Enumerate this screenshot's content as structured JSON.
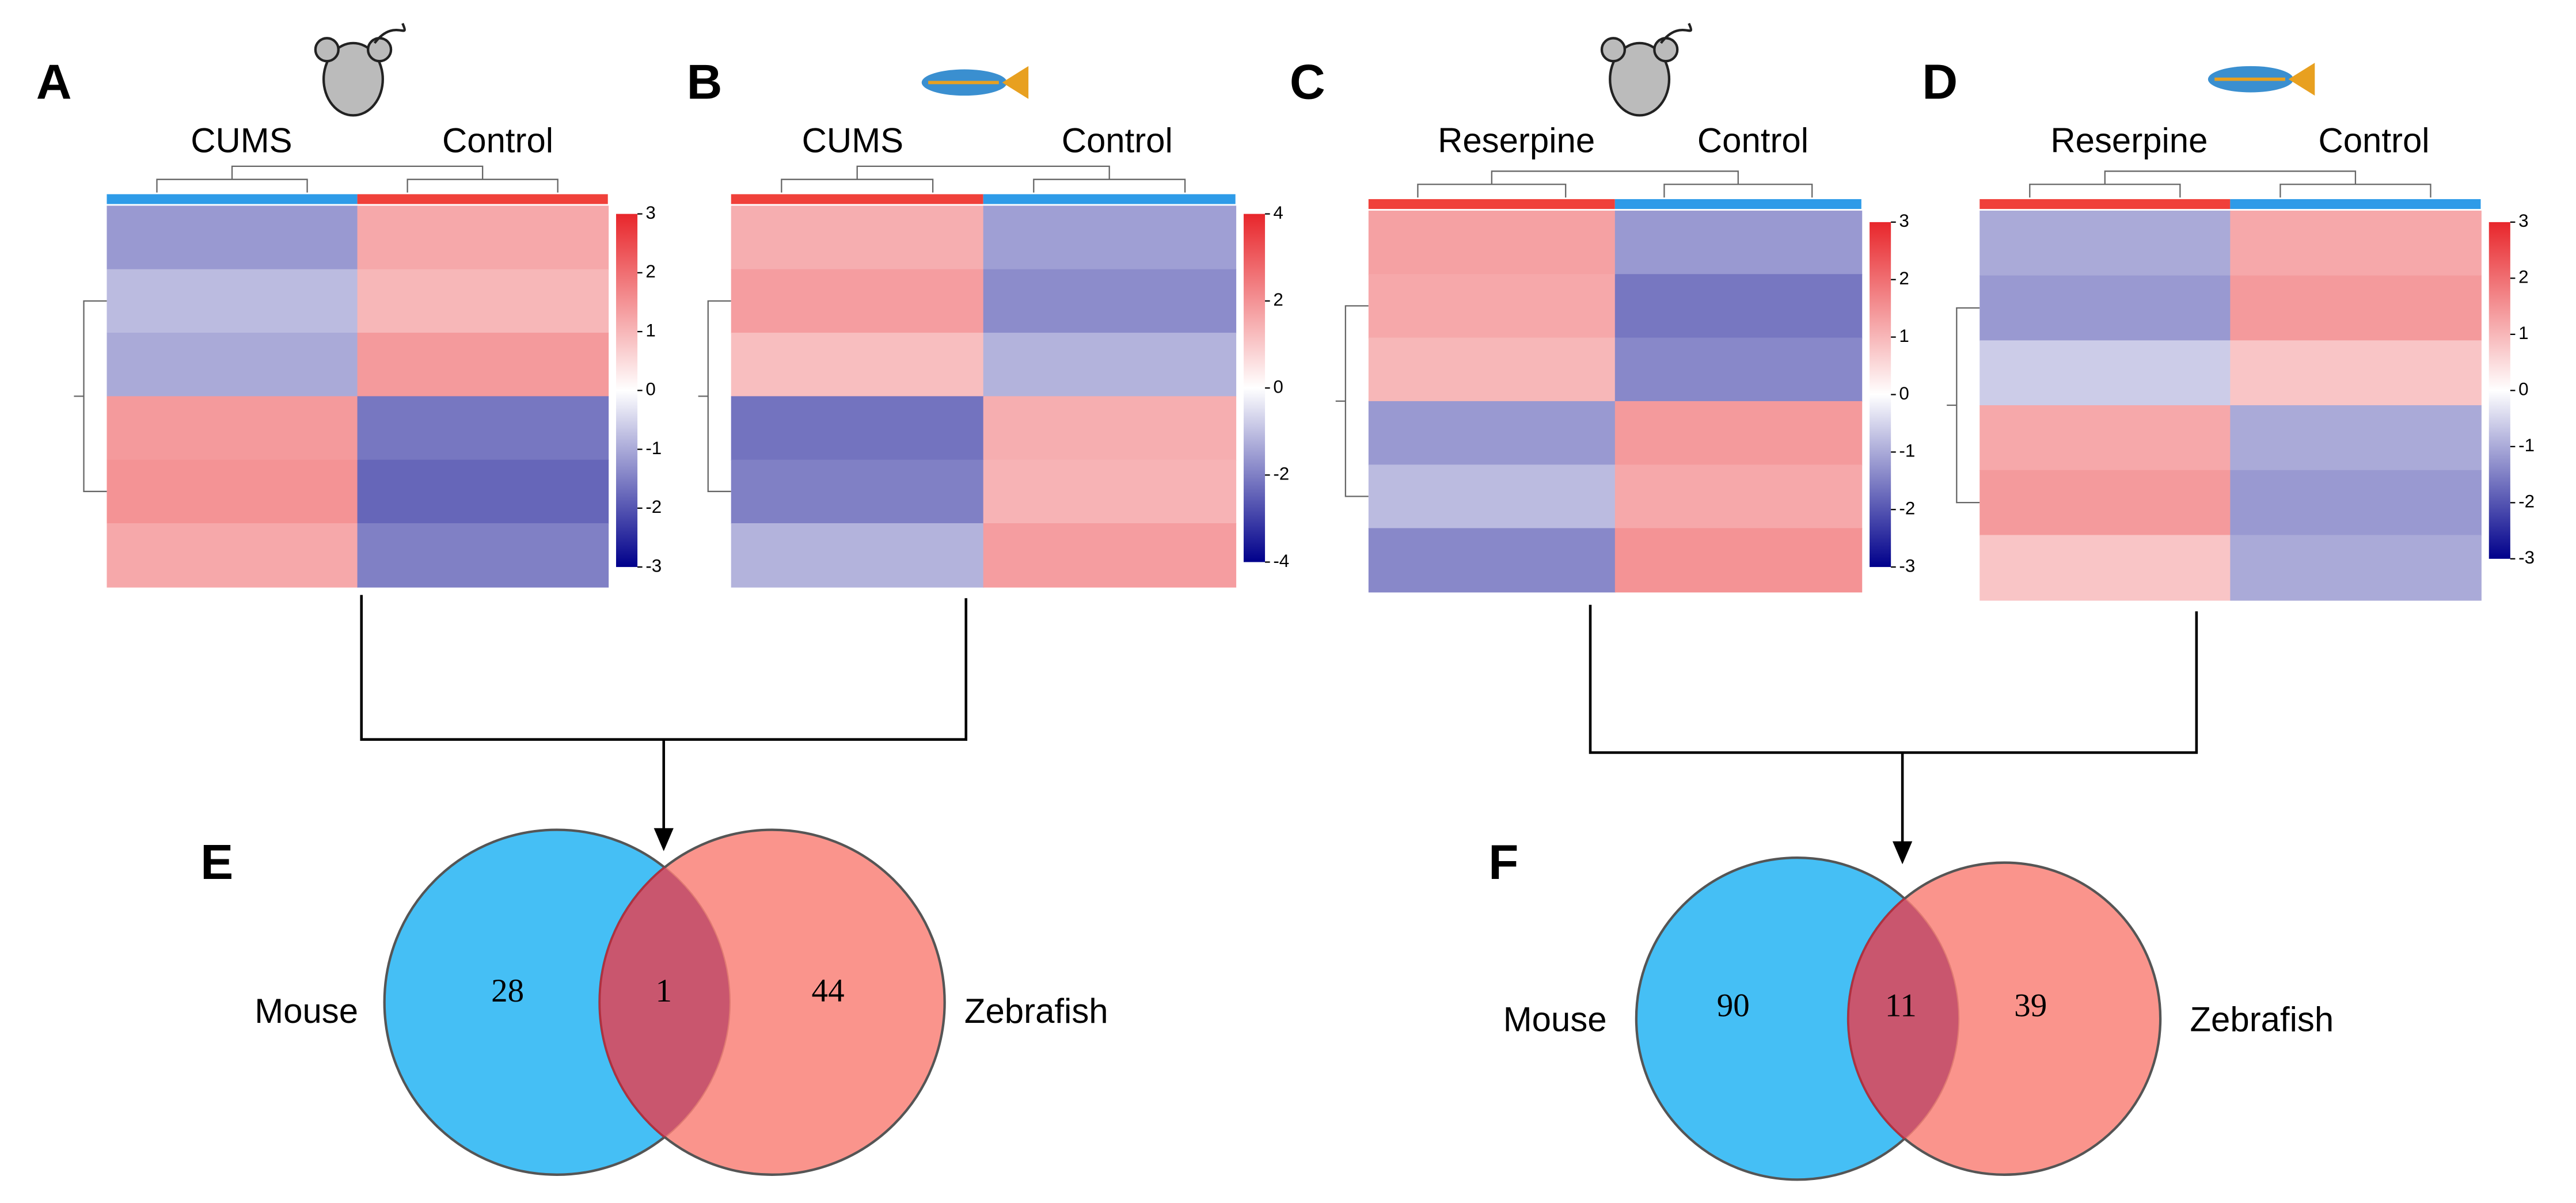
{
  "panels": [
    {
      "label": "A",
      "groups": [
        "CUMS",
        "Control"
      ],
      "group_colors": [
        "#2e9be8",
        "#f0403a"
      ],
      "colorbar": {
        "lim": [
          -3,
          3
        ],
        "ticks": [
          -3,
          -2,
          -1,
          0,
          1,
          2,
          3
        ]
      },
      "blocks": [
        [
          -1.2,
          1.2
        ],
        [
          -0.8,
          1.0
        ],
        [
          -1.0,
          1.4
        ],
        [
          1.4,
          -1.6
        ],
        [
          1.5,
          -1.8
        ],
        [
          1.2,
          -1.5
        ]
      ]
    },
    {
      "label": "B",
      "groups": [
        "CUMS",
        "Control"
      ],
      "group_colors": [
        "#f0403a",
        "#2e9be8"
      ],
      "colorbar": {
        "lim": [
          -4,
          4
        ],
        "ticks": [
          -4,
          -2,
          0,
          2,
          4
        ]
      },
      "blocks": [
        [
          1.5,
          -1.5
        ],
        [
          1.8,
          -1.8
        ],
        [
          1.2,
          -1.2
        ],
        [
          -2.2,
          1.5
        ],
        [
          -2.0,
          1.4
        ],
        [
          -1.2,
          1.8
        ]
      ]
    },
    {
      "label": "C",
      "groups": [
        "Reserpine",
        "Control"
      ],
      "group_colors": [
        "#f0403a",
        "#2e9be8"
      ],
      "colorbar": {
        "lim": [
          -3,
          3
        ],
        "ticks": [
          -3,
          -2,
          -1,
          0,
          1,
          2,
          3
        ]
      },
      "blocks": [
        [
          1.3,
          -1.2
        ],
        [
          1.2,
          -1.6
        ],
        [
          1.0,
          -1.4
        ],
        [
          -1.2,
          1.4
        ],
        [
          -0.8,
          1.2
        ],
        [
          -1.4,
          1.5
        ]
      ]
    },
    {
      "label": "D",
      "groups": [
        "Reserpine",
        "Control"
      ],
      "group_colors": [
        "#f0403a",
        "#2e9be8"
      ],
      "colorbar": {
        "lim": [
          -3,
          3
        ],
        "ticks": [
          -3,
          -2,
          -1,
          0,
          1,
          2,
          3
        ]
      },
      "blocks": [
        [
          -1.0,
          1.2
        ],
        [
          -1.2,
          1.4
        ],
        [
          -0.6,
          0.8
        ],
        [
          1.2,
          -1.0
        ],
        [
          1.4,
          -1.2
        ],
        [
          0.8,
          -1.0
        ]
      ]
    }
  ],
  "venns": [
    {
      "label": "E",
      "sets": [
        "Mouse",
        "Zebrafish"
      ],
      "counts": [
        28,
        1,
        44
      ],
      "colors": [
        "#45bff5",
        "#f98178"
      ]
    },
    {
      "label": "F",
      "sets": [
        "Mouse",
        "Zebrafish"
      ],
      "counts": [
        90,
        11,
        39
      ],
      "colors": [
        "#45bff5",
        "#f98178"
      ]
    }
  ]
}
